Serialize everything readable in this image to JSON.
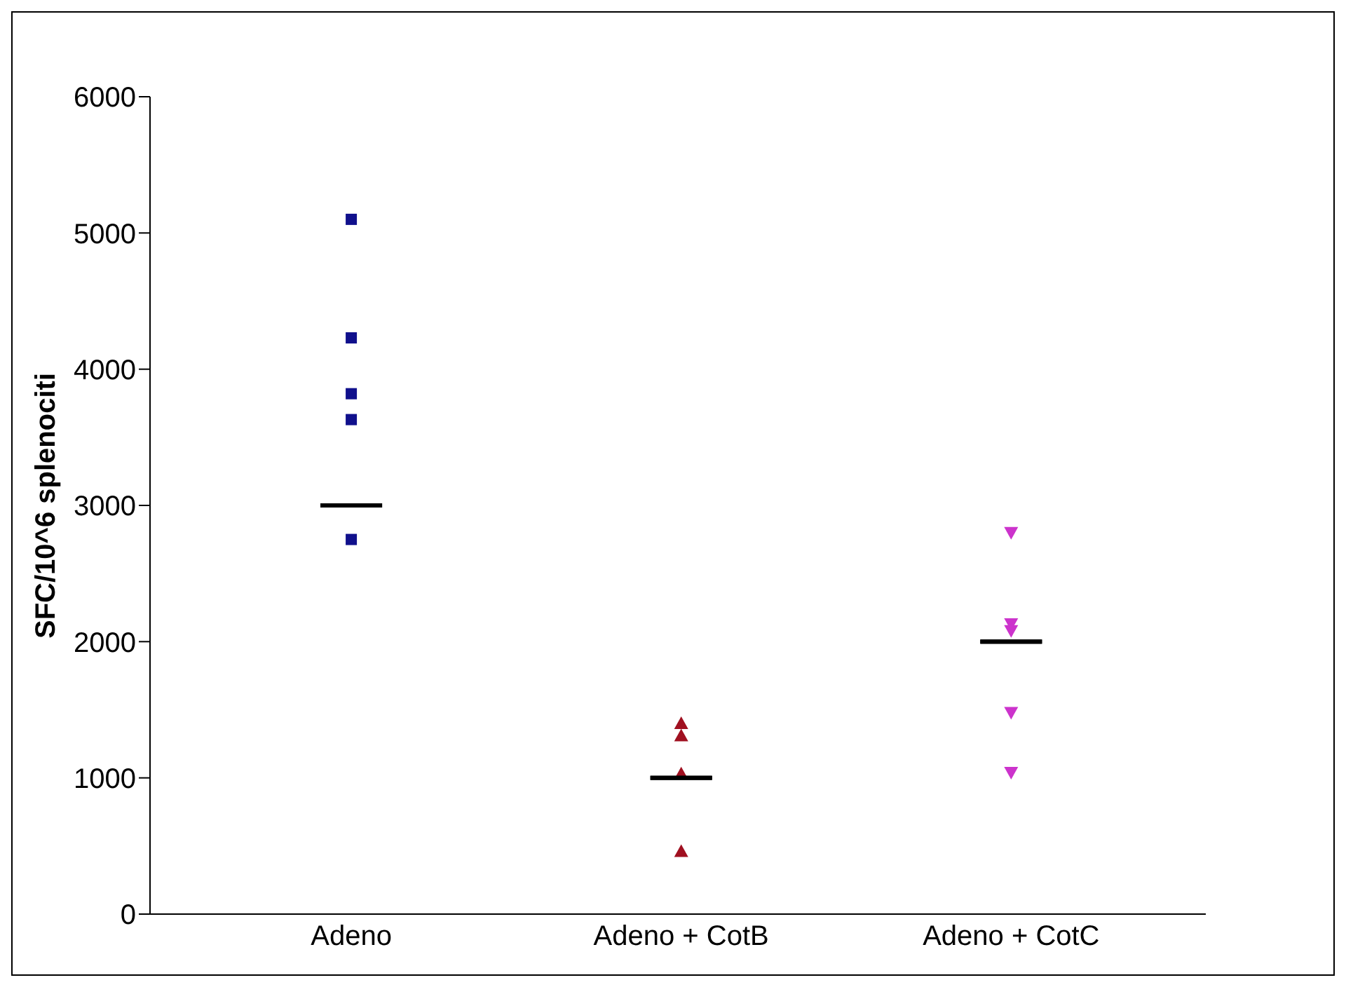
{
  "chart_data": {
    "type": "scatter",
    "ylabel": "SFC/10^6 splenociti",
    "categories": [
      "Adeno",
      "Adeno + CotB",
      "Adeno + CotC"
    ],
    "ylim": [
      0,
      6000
    ],
    "yticks": [
      0,
      1000,
      2000,
      3000,
      4000,
      5000,
      6000
    ],
    "grid": false,
    "legend": false,
    "series": [
      {
        "marker": "square",
        "color": "#10108c",
        "x": [
          "Adeno",
          "Adeno",
          "Adeno",
          "Adeno",
          "Adeno"
        ],
        "values": [
          5100,
          4230,
          3820,
          3630,
          2750
        ]
      },
      {
        "marker": "triangle",
        "color": "#a01020",
        "x": [
          "Adeno + CotB",
          "Adeno + CotB",
          "Adeno + CotB",
          "Adeno + CotB"
        ],
        "values": [
          1310,
          1400,
          1030,
          460
        ]
      },
      {
        "marker": "triangle-down",
        "color": "#cc33cc",
        "x": [
          "Adeno + CotC",
          "Adeno + CotC",
          "Adeno + CotC",
          "Adeno + CotC",
          "Adeno + CotC"
        ],
        "values": [
          2800,
          2080,
          2130,
          1480,
          1040
        ]
      },
      {
        "type": "box",
        "color": "#000000",
        "boxes": [
          {
            "low": 3000,
            "q1": 3000,
            "median": 3000,
            "q3": 3000,
            "high": 3000
          },
          {
            "low": 1000,
            "q1": 1000,
            "median": 1000,
            "q3": 1000,
            "high": 1000
          },
          {
            "low": 2000,
            "q1": 2000,
            "median": 2000,
            "q3": 2000,
            "high": 2000
          }
        ]
      }
    ]
  }
}
